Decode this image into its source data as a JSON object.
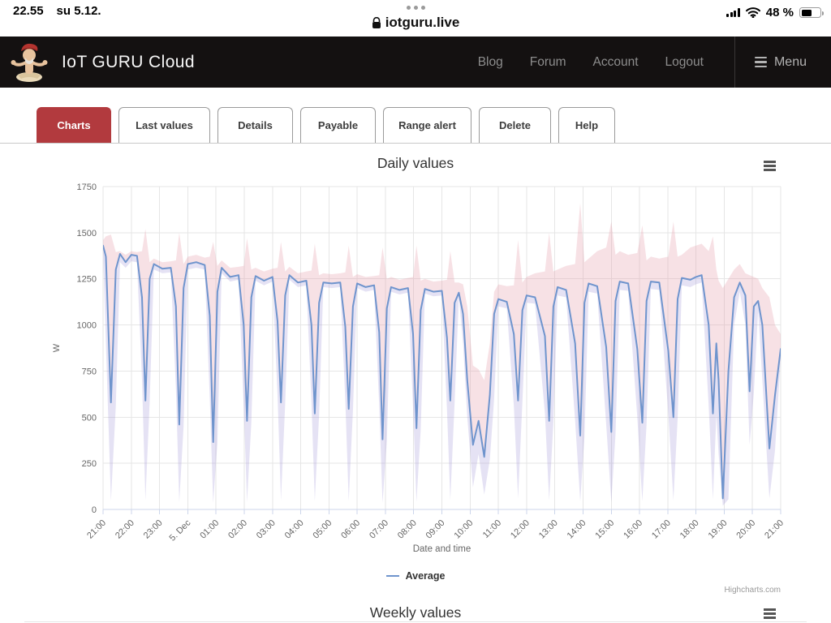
{
  "status_bar": {
    "time": "22.55",
    "date": "su 5.12.",
    "url": "iotguru.live",
    "battery_percent": "48 %"
  },
  "navbar": {
    "brand": "IoT GURU Cloud",
    "links": [
      "Blog",
      "Forum",
      "Account",
      "Logout"
    ],
    "menu_label": "Menu"
  },
  "tabs": [
    {
      "label": "Charts",
      "active": true
    },
    {
      "label": "Last values",
      "active": false
    },
    {
      "label": "Details",
      "active": false
    },
    {
      "label": "Payable",
      "active": false
    },
    {
      "label": "Range alert",
      "active": false
    },
    {
      "label": "Delete",
      "active": false
    },
    {
      "label": "Help",
      "active": false
    }
  ],
  "colors": {
    "active_tab_red": "#b23a3e",
    "line_blue": "#6f94cd",
    "max_band_pink": "#e494a2",
    "min_band_lavender": "#9c8fd4",
    "gridline": "#e6e6e6",
    "axis_line": "#ccd6eb",
    "label_gray": "#666666"
  },
  "credits": "Highcharts.com",
  "chart_data": [
    {
      "type": "line",
      "title": "Daily values",
      "xlabel": "Date and time",
      "ylabel": "W",
      "ylim": [
        0,
        1750
      ],
      "y_ticks": [
        0,
        250,
        500,
        750,
        1000,
        1250,
        1500,
        1750
      ],
      "x_tick_labels": [
        "21:00",
        "22:00",
        "23:00",
        "5. Dec",
        "01:00",
        "02:00",
        "03:00",
        "04:00",
        "05:00",
        "06:00",
        "07:00",
        "08:00",
        "09:00",
        "10:00",
        "11:00",
        "12:00",
        "13:00",
        "14:00",
        "15:00",
        "16:00",
        "17:00",
        "18:00",
        "19:00",
        "20:00",
        "21:00"
      ],
      "x_range_hours": [
        0,
        24
      ],
      "legend": [
        "Average"
      ],
      "legend_position": "bottom-center",
      "grid": true,
      "series_note": "avg line with min-max envelope; pink band above average, lavender band below; points are [hours_after_21:00, avg_W, max_W, min_W]",
      "points": [
        [
          0,
          1430,
          1460,
          1380
        ],
        [
          0.1,
          1370,
          1480,
          900
        ],
        [
          0.28,
          580,
          1490,
          45
        ],
        [
          0.45,
          1300,
          1395,
          560
        ],
        [
          0.6,
          1385,
          1400,
          1340
        ],
        [
          0.8,
          1340,
          1380,
          1310
        ],
        [
          1.0,
          1380,
          1400,
          1345
        ],
        [
          1.2,
          1375,
          1395,
          1340
        ],
        [
          1.38,
          1150,
          1400,
          700
        ],
        [
          1.5,
          590,
          1520,
          50
        ],
        [
          1.65,
          1250,
          1340,
          580
        ],
        [
          1.8,
          1330,
          1360,
          1300
        ],
        [
          2.1,
          1305,
          1340,
          1280
        ],
        [
          2.4,
          1310,
          1345,
          1285
        ],
        [
          2.58,
          1100,
          1350,
          650
        ],
        [
          2.7,
          460,
          1500,
          40
        ],
        [
          2.85,
          1200,
          1330,
          450
        ],
        [
          3.0,
          1330,
          1370,
          1300
        ],
        [
          3.3,
          1340,
          1380,
          1310
        ],
        [
          3.6,
          1325,
          1365,
          1300
        ],
        [
          3.78,
          1050,
          1370,
          600
        ],
        [
          3.9,
          365,
          1450,
          35
        ],
        [
          4.05,
          1180,
          1320,
          360
        ],
        [
          4.2,
          1310,
          1350,
          1280
        ],
        [
          4.5,
          1260,
          1310,
          1235
        ],
        [
          4.8,
          1270,
          1315,
          1245
        ],
        [
          4.98,
          1000,
          1320,
          560
        ],
        [
          5.1,
          480,
          1470,
          40
        ],
        [
          5.25,
          1150,
          1300,
          470
        ],
        [
          5.4,
          1265,
          1310,
          1240
        ],
        [
          5.7,
          1240,
          1290,
          1215
        ],
        [
          6.0,
          1260,
          1305,
          1235
        ],
        [
          6.18,
          1020,
          1310,
          620
        ],
        [
          6.3,
          580,
          1450,
          50
        ],
        [
          6.45,
          1160,
          1290,
          570
        ],
        [
          6.6,
          1270,
          1315,
          1245
        ],
        [
          6.9,
          1230,
          1280,
          1205
        ],
        [
          7.2,
          1240,
          1290,
          1215
        ],
        [
          7.38,
          1000,
          1295,
          580
        ],
        [
          7.5,
          520,
          1440,
          45
        ],
        [
          7.65,
          1120,
          1270,
          510
        ],
        [
          7.8,
          1230,
          1280,
          1205
        ],
        [
          8.1,
          1225,
          1275,
          1200
        ],
        [
          8.4,
          1230,
          1280,
          1205
        ],
        [
          8.58,
          990,
          1285,
          590
        ],
        [
          8.7,
          545,
          1430,
          45
        ],
        [
          8.85,
          1100,
          1260,
          535
        ],
        [
          9.0,
          1225,
          1275,
          1200
        ],
        [
          9.3,
          1205,
          1260,
          1180
        ],
        [
          9.6,
          1215,
          1265,
          1190
        ],
        [
          9.78,
          960,
          1270,
          560
        ],
        [
          9.9,
          380,
          1420,
          35
        ],
        [
          10.05,
          1090,
          1250,
          370
        ],
        [
          10.2,
          1205,
          1260,
          1180
        ],
        [
          10.5,
          1190,
          1245,
          1165
        ],
        [
          10.8,
          1200,
          1255,
          1175
        ],
        [
          10.98,
          950,
          1260,
          550
        ],
        [
          11.1,
          440,
          1430,
          40
        ],
        [
          11.25,
          1080,
          1240,
          430
        ],
        [
          11.4,
          1195,
          1250,
          1170
        ],
        [
          11.7,
          1180,
          1235,
          1155
        ],
        [
          12.0,
          1185,
          1240,
          1160
        ],
        [
          12.18,
          930,
          1245,
          540
        ],
        [
          12.3,
          590,
          1400,
          50
        ],
        [
          12.45,
          1120,
          1230,
          580
        ],
        [
          12.6,
          1175,
          1230,
          1150
        ],
        [
          12.75,
          1060,
          1220,
          900
        ],
        [
          12.9,
          700,
          1100,
          500
        ],
        [
          13.1,
          350,
          780,
          120
        ],
        [
          13.3,
          480,
          760,
          300
        ],
        [
          13.5,
          285,
          700,
          80
        ],
        [
          13.7,
          620,
          900,
          270
        ],
        [
          13.85,
          1060,
          1180,
          600
        ],
        [
          14.0,
          1140,
          1220,
          1100
        ],
        [
          14.3,
          1125,
          1210,
          1090
        ],
        [
          14.55,
          950,
          1215,
          560
        ],
        [
          14.7,
          590,
          1460,
          60
        ],
        [
          14.85,
          1080,
          1230,
          580
        ],
        [
          15.0,
          1160,
          1260,
          1120
        ],
        [
          15.3,
          1150,
          1280,
          1115
        ],
        [
          15.65,
          940,
          1290,
          520
        ],
        [
          15.8,
          480,
          1500,
          50
        ],
        [
          15.95,
          1100,
          1290,
          470
        ],
        [
          16.1,
          1205,
          1300,
          1160
        ],
        [
          16.4,
          1190,
          1320,
          1150
        ],
        [
          16.72,
          900,
          1330,
          480
        ],
        [
          16.9,
          400,
          1660,
          45
        ],
        [
          17.05,
          1120,
          1340,
          390
        ],
        [
          17.2,
          1225,
          1360,
          1180
        ],
        [
          17.5,
          1210,
          1400,
          1170
        ],
        [
          17.82,
          880,
          1420,
          460
        ],
        [
          18.0,
          420,
          1560,
          40
        ],
        [
          18.15,
          1130,
          1380,
          410
        ],
        [
          18.3,
          1235,
          1400,
          1190
        ],
        [
          18.6,
          1225,
          1380,
          1185
        ],
        [
          18.92,
          870,
          1390,
          500
        ],
        [
          19.1,
          470,
          1540,
          45
        ],
        [
          19.25,
          1130,
          1350,
          460
        ],
        [
          19.4,
          1235,
          1370,
          1195
        ],
        [
          19.7,
          1230,
          1360,
          1190
        ],
        [
          20.02,
          860,
          1370,
          520
        ],
        [
          20.2,
          500,
          1560,
          50
        ],
        [
          20.35,
          1140,
          1370,
          490
        ],
        [
          20.5,
          1255,
          1380,
          1215
        ],
        [
          20.8,
          1245,
          1420,
          1205
        ],
        [
          21.0,
          1260,
          1430,
          1220
        ],
        [
          21.2,
          1270,
          1440,
          1230
        ],
        [
          21.45,
          1000,
          1400,
          560
        ],
        [
          21.6,
          520,
          1480,
          55
        ],
        [
          21.72,
          900,
          1300,
          510
        ],
        [
          21.8,
          700,
          1240,
          300
        ],
        [
          21.95,
          60,
          1200,
          20
        ],
        [
          22.15,
          750,
          1250,
          55
        ],
        [
          22.35,
          1150,
          1300,
          1000
        ],
        [
          22.55,
          1230,
          1330,
          1180
        ],
        [
          22.75,
          1160,
          1280,
          1000
        ],
        [
          22.9,
          640,
          1270,
          350
        ],
        [
          23.05,
          1100,
          1260,
          630
        ],
        [
          23.2,
          1130,
          1250,
          1080
        ],
        [
          23.35,
          1000,
          1200,
          700
        ],
        [
          23.6,
          330,
          1150,
          60
        ],
        [
          23.8,
          620,
          1000,
          320
        ],
        [
          24.0,
          870,
          950,
          820
        ]
      ]
    },
    {
      "type": "line",
      "title": "Weekly values"
    }
  ]
}
